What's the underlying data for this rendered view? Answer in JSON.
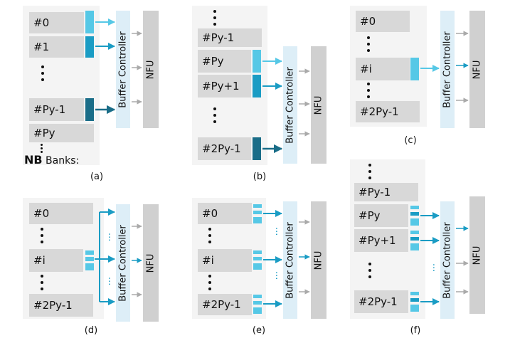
{
  "figure": {
    "captions": [
      "(a)",
      "(b)",
      "(c)",
      "(d)",
      "(e)",
      "(f)"
    ],
    "buffer_label": "Buffer Controller",
    "nfu_label": "NFU",
    "nb_label_bold": "NB",
    "nb_label_rest": " Banks:",
    "colors": {
      "panel_bg": "#f4f4f4",
      "bank_bg": "#d8d8d8",
      "buffer_bg": "#ddeef7",
      "nfu_bg": "#d0d0d0",
      "light_cyan": "#56c8e6",
      "mid_teal": "#1a9cc4",
      "dark_teal": "#1a6d88",
      "gray_arrow": "#aaaaaa"
    }
  },
  "panel_a": {
    "banks": [
      "#0",
      "#1",
      "#Py-1",
      "#Py"
    ]
  },
  "panel_b": {
    "banks": [
      "#Py-1",
      "#Py",
      "#Py+1",
      "#2Py-1"
    ]
  },
  "panel_c": {
    "banks": [
      "#0",
      "#i",
      "#2Py-1"
    ]
  },
  "panel_d": {
    "banks": [
      "#0",
      "#i",
      "#2Py-1"
    ]
  },
  "panel_e": {
    "banks": [
      "#0",
      "#i",
      "#2Py-1"
    ]
  },
  "panel_f": {
    "banks": [
      "#Py-1",
      "#Py",
      "#Py+1",
      "#2Py-1"
    ]
  }
}
